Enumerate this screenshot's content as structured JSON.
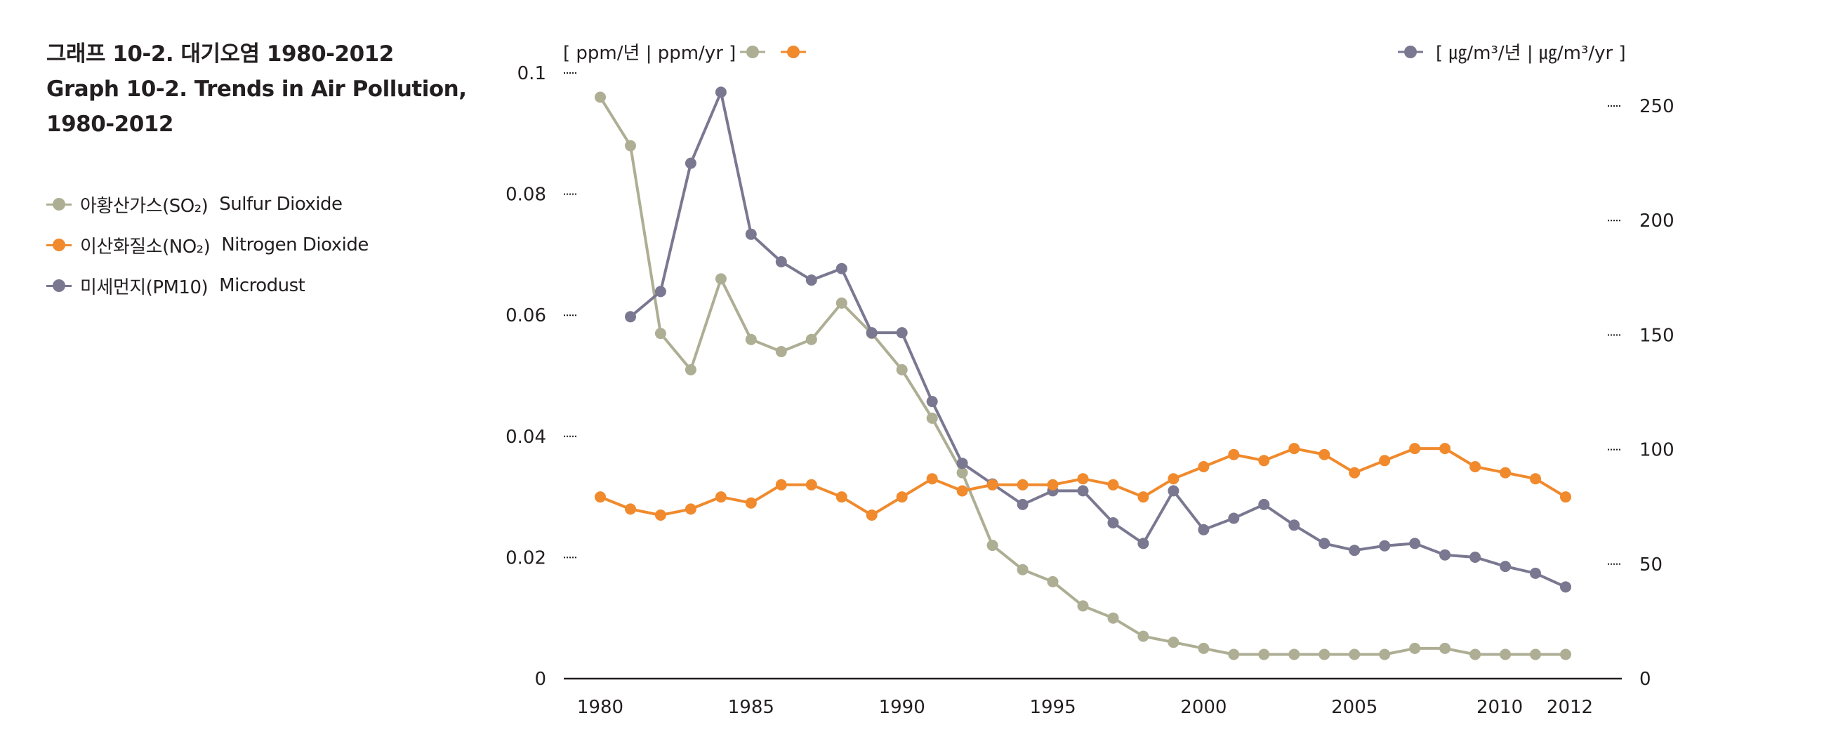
{
  "title": {
    "line1": "그래프 10-2. 대기오염 1980-2012",
    "line2": "Graph 10-2. Trends in Air Pollution,",
    "line3": "1980-2012"
  },
  "legend": [
    {
      "label_ko": "아황산가스(SO₂)",
      "label_en": "Sulfur Dioxide",
      "color": "#aeae94"
    },
    {
      "label_ko": "이산화질소(NO₂)",
      "label_en": "Nitrogen Dioxide",
      "color": "#f08a2c"
    },
    {
      "label_ko": "미세먼지(PM10)",
      "label_en": "Microdust",
      "color": "#7a7891"
    }
  ],
  "colors": {
    "so2": "#aeae94",
    "no2": "#f08a2c",
    "pm10": "#7a7891",
    "axis": "#231f20"
  },
  "chart_data": {
    "type": "line",
    "left_axis": {
      "unit_label": "[ ppm/년 | ppm/yr ]",
      "ylim": [
        0,
        0.1
      ],
      "ticks": [
        0,
        0.02,
        0.04,
        0.06,
        0.08,
        0.1
      ],
      "tick_labels": [
        "0",
        "0.02",
        "0.04",
        "0.06",
        "0.08",
        "0.1"
      ]
    },
    "right_axis": {
      "unit_label": "[ ㎍/m³/년 | ㎍/m³/yr ]",
      "ylim": [
        0,
        250
      ],
      "ticks": [
        0,
        50,
        100,
        150,
        200,
        250
      ],
      "tick_labels": [
        "0",
        "50",
        "100",
        "150",
        "200",
        "250"
      ]
    },
    "x_axis": {
      "xlim": [
        1980,
        2012
      ],
      "ticks": [
        1980,
        1985,
        1990,
        1995,
        2000,
        2005,
        2010,
        2012
      ],
      "tick_labels": [
        "1980",
        "1985",
        "1990",
        "1995",
        "2000",
        "2005",
        "2010",
        "2012"
      ]
    },
    "grid": false,
    "series": [
      {
        "name": "아황산가스(SO₂) Sulfur Dioxide",
        "axis": "left",
        "color": "#aeae94",
        "x": [
          1980,
          1981,
          1982,
          1983,
          1984,
          1985,
          1986,
          1987,
          1988,
          1989,
          1990,
          1991,
          1992,
          1993,
          1994,
          1995,
          1996,
          1997,
          1998,
          1999,
          2000,
          2001,
          2002,
          2003,
          2004,
          2005,
          2006,
          2007,
          2008,
          2009,
          2010,
          2011,
          2012
        ],
        "values": [
          0.096,
          0.088,
          0.057,
          0.051,
          0.066,
          0.056,
          0.054,
          0.056,
          0.062,
          0.057,
          0.051,
          0.043,
          0.034,
          0.022,
          0.018,
          0.016,
          0.012,
          0.01,
          0.007,
          0.006,
          0.005,
          0.004,
          0.004,
          0.004,
          0.004,
          0.004,
          0.004,
          0.005,
          0.005,
          0.004,
          0.004,
          0.004,
          0.004
        ]
      },
      {
        "name": "이산화질소(NO₂) Nitrogen Dioxide",
        "axis": "left",
        "color": "#f08a2c",
        "x": [
          1980,
          1981,
          1982,
          1983,
          1984,
          1985,
          1986,
          1987,
          1988,
          1989,
          1990,
          1991,
          1992,
          1993,
          1994,
          1995,
          1996,
          1997,
          1998,
          1999,
          2000,
          2001,
          2002,
          2003,
          2004,
          2005,
          2006,
          2007,
          2008,
          2009,
          2010,
          2011,
          2012
        ],
        "values": [
          0.03,
          0.028,
          0.027,
          0.028,
          0.03,
          0.029,
          0.032,
          0.032,
          0.03,
          0.027,
          0.03,
          0.033,
          0.031,
          0.032,
          0.032,
          0.032,
          0.033,
          0.032,
          0.03,
          0.033,
          0.035,
          0.037,
          0.036,
          0.038,
          0.037,
          0.034,
          0.036,
          0.038,
          0.038,
          0.035,
          0.034,
          0.033,
          0.03
        ]
      },
      {
        "name": "미세먼지(PM10) Microdust",
        "axis": "right",
        "color": "#7a7891",
        "x": [
          1981,
          1982,
          1983,
          1984,
          1985,
          1986,
          1987,
          1988,
          1989,
          1990,
          1991,
          1992,
          1993,
          1994,
          1995,
          1996,
          1997,
          1998,
          1999,
          2000,
          2001,
          2002,
          2003,
          2004,
          2005,
          2006,
          2007,
          2008,
          2009,
          2010,
          2011,
          2012
        ],
        "values": [
          158,
          169,
          225,
          256,
          194,
          182,
          174,
          179,
          151,
          151,
          121,
          94,
          85,
          76,
          82,
          82,
          68,
          59,
          82,
          65,
          70,
          76,
          67,
          59,
          56,
          58,
          59,
          54,
          53,
          49,
          46,
          40
        ]
      }
    ]
  }
}
